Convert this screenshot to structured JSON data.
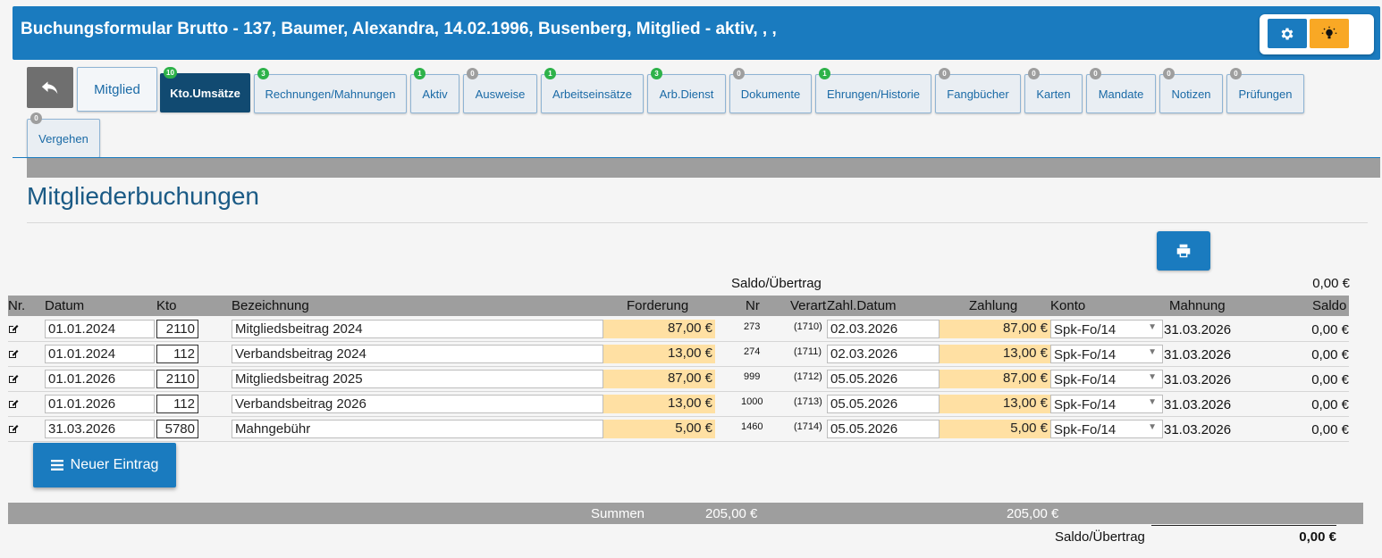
{
  "header": {
    "title": "Buchungsformular Brutto - 137, Baumer, Alexandra, 14.02.1996, Busenberg, Mitglied - aktiv, , ,",
    "settings_icon": "gear-icon",
    "tips_icon": "lightbulb-icon"
  },
  "tabs": [
    {
      "label": "Mitglied",
      "badge": ""
    },
    {
      "label": "Kto.Umsätze",
      "badge": "10"
    },
    {
      "label": "Rechnungen/Mahnungen",
      "badge": "3"
    },
    {
      "label": "Aktiv",
      "badge": "1"
    },
    {
      "label": "Ausweise",
      "badge": "0"
    },
    {
      "label": "Arbeitseinsätze",
      "badge": "1"
    },
    {
      "label": "Arb.Dienst",
      "badge": "3"
    },
    {
      "label": "Dokumente",
      "badge": "0"
    },
    {
      "label": "Ehrungen/Historie",
      "badge": "1"
    },
    {
      "label": "Fangbücher",
      "badge": "0"
    },
    {
      "label": "Karten",
      "badge": "0"
    },
    {
      "label": "Mandate",
      "badge": "0"
    },
    {
      "label": "Notizen",
      "badge": "0"
    },
    {
      "label": "Prüfungen",
      "badge": "0"
    },
    {
      "label": "Vergehen",
      "badge": "0"
    }
  ],
  "main": {
    "title": "Mitgliederbuchungen",
    "saldo_label": "Saldo/Übertrag",
    "saldo_value": "0,00 €"
  },
  "table": {
    "headers": [
      "Nr.",
      "Datum",
      "Kto",
      "Bezeichnung",
      "Forderung",
      "Nr",
      "Verart",
      "Zahl.Datum",
      "Zahlung",
      "Konto",
      "Mahnung",
      "Saldo"
    ],
    "rows": [
      {
        "datum": "01.01.2024",
        "kto": "2110",
        "bezeichnung": "Mitgliedsbeitrag 2024",
        "forderung": "87,00 €",
        "nr": "273",
        "verart": "(1710)",
        "zahl_datum": "02.03.2026",
        "zahlung": "87,00 €",
        "konto": "Spk-Fo/14",
        "mahnung": "31.03.2026",
        "saldo": "0,00 €"
      },
      {
        "datum": "01.01.2024",
        "kto": "112",
        "bezeichnung": "Verbandsbeitrag 2024",
        "forderung": "13,00 €",
        "nr": "274",
        "verart": "(1711)",
        "zahl_datum": "02.03.2026",
        "zahlung": "13,00 €",
        "konto": "Spk-Fo/14",
        "mahnung": "31.03.2026",
        "saldo": "0,00 €"
      },
      {
        "datum": "01.01.2026",
        "kto": "2110",
        "bezeichnung": "Mitgliedsbeitrag 2025",
        "forderung": "87,00 €",
        "nr": "999",
        "verart": "(1712)",
        "zahl_datum": "05.05.2026",
        "zahlung": "87,00 €",
        "konto": "Spk-Fo/14",
        "mahnung": "31.03.2026",
        "saldo": "0,00 €"
      },
      {
        "datum": "01.01.2026",
        "kto": "112",
        "bezeichnung": "Verbandsbeitrag 2026",
        "forderung": "13,00 €",
        "nr": "1000",
        "verart": "(1713)",
        "zahl_datum": "05.05.2026",
        "zahlung": "13,00 €",
        "konto": "Spk-Fo/14",
        "mahnung": "31.03.2026",
        "saldo": "0,00 €"
      },
      {
        "datum": "31.03.2026",
        "kto": "5780",
        "bezeichnung": "Mahngebühr",
        "forderung": "5,00 €",
        "nr": "1460",
        "verart": "(1714)",
        "zahl_datum": "05.05.2026",
        "zahlung": "5,00 €",
        "konto": "Spk-Fo/14",
        "mahnung": "31.03.2026",
        "saldo": "0,00 €"
      }
    ]
  },
  "new_entry": {
    "label": "Neuer Eintrag",
    "icon": "list-icon"
  },
  "summary": {
    "label": "Summen",
    "forderung_total": "205,00 €",
    "zahlung_total": "205,00 €",
    "saldo_label": "Saldo/Übertrag",
    "saldo_value": "0,00 €"
  },
  "colors": {
    "brand": "#1a7bbf",
    "active_tab": "#114a71",
    "amount_bg": "#ffe0a3",
    "badge_green": "#2eb24a",
    "badge_gray": "#9e9e9e",
    "bulb": "#f9a825"
  }
}
